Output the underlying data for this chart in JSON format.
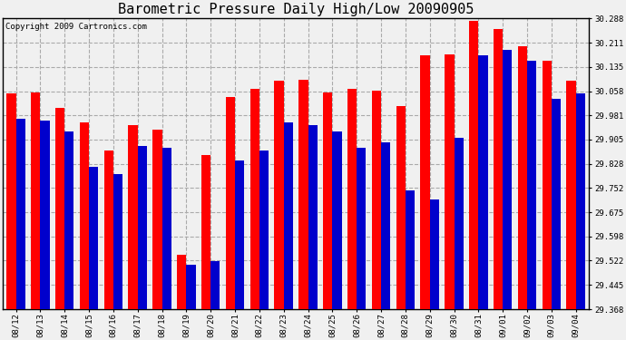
{
  "title": "Barometric Pressure Daily High/Low 20090905",
  "copyright": "Copyright 2009 Cartronics.com",
  "dates": [
    "08/12",
    "08/13",
    "08/14",
    "08/15",
    "08/16",
    "08/17",
    "08/18",
    "08/19",
    "08/20",
    "08/21",
    "08/22",
    "08/23",
    "08/24",
    "08/25",
    "08/26",
    "08/27",
    "08/28",
    "08/29",
    "08/30",
    "08/31",
    "09/01",
    "09/02",
    "09/03",
    "09/04"
  ],
  "highs": [
    30.05,
    30.055,
    30.005,
    29.96,
    29.87,
    29.95,
    29.935,
    29.54,
    29.855,
    30.04,
    30.065,
    30.09,
    30.095,
    30.055,
    30.065,
    30.06,
    30.01,
    30.17,
    30.175,
    30.28,
    30.255,
    30.2,
    30.155,
    30.09
  ],
  "lows": [
    29.97,
    29.965,
    29.93,
    29.82,
    29.795,
    29.885,
    29.88,
    29.51,
    29.52,
    29.84,
    29.87,
    29.96,
    29.95,
    29.93,
    29.88,
    29.895,
    29.745,
    29.715,
    29.91,
    30.17,
    30.19,
    30.155,
    30.035,
    30.05
  ],
  "high_color": "#ff0000",
  "low_color": "#0000cc",
  "bg_color": "#f0f0f0",
  "plot_bg_color": "#f0f0f0",
  "grid_color": "#aaaaaa",
  "ylim_min": 29.368,
  "ylim_max": 30.288,
  "yticks": [
    29.368,
    29.445,
    29.522,
    29.598,
    29.675,
    29.752,
    29.828,
    29.905,
    29.981,
    30.058,
    30.135,
    30.211,
    30.288
  ],
  "title_fontsize": 11,
  "copyright_fontsize": 6.5,
  "tick_fontsize": 6.5,
  "bar_width": 0.38
}
